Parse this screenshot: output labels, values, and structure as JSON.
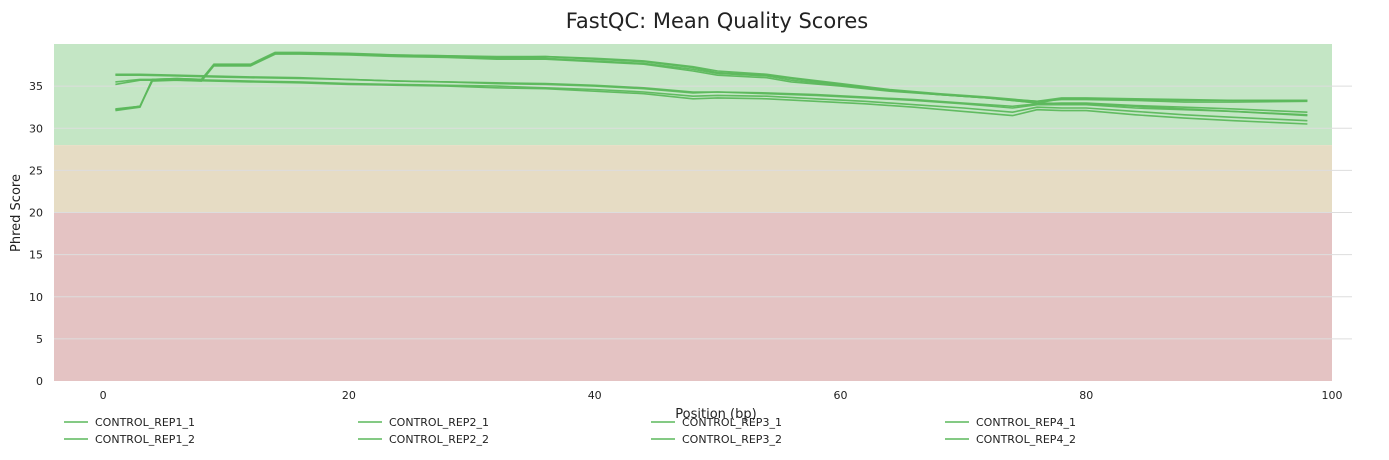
{
  "chart_data": {
    "type": "line",
    "title": "FastQC: Mean Quality Scores",
    "xlabel": "Position (bp)",
    "ylabel": "Phred Score",
    "xlim": [
      -4,
      100
    ],
    "ylim": [
      0,
      40
    ],
    "xticks": [
      0,
      20,
      40,
      60,
      80,
      100
    ],
    "yticks": [
      0,
      5,
      10,
      15,
      20,
      25,
      30,
      35
    ],
    "grid": true,
    "legend_position": "bottom",
    "quality_bands": [
      {
        "from": 28,
        "to": 40,
        "color": "#c4e6c5"
      },
      {
        "from": 20,
        "to": 28,
        "color": "#e6dcc4"
      },
      {
        "from": 0,
        "to": 20,
        "color": "#e4c3c3"
      }
    ],
    "line_color": "#5cb85c",
    "series": [
      {
        "name": "CONTROL_REP1_1",
        "x": [
          1,
          3,
          4,
          6,
          8,
          9,
          12,
          14,
          16,
          20,
          24,
          28,
          32,
          36,
          40,
          44,
          48,
          50,
          54,
          56,
          60,
          64,
          68,
          72,
          76,
          80,
          84,
          88,
          92,
          98
        ],
        "y": [
          32.2,
          32.6,
          35.6,
          35.7,
          35.6,
          37.4,
          37.4,
          38.8,
          38.8,
          38.7,
          38.5,
          38.4,
          38.2,
          38.2,
          37.9,
          37.6,
          36.8,
          36.3,
          36.0,
          35.5,
          35.0,
          34.4,
          34.0,
          33.6,
          33.0,
          32.9,
          32.6,
          32.3,
          32.0,
          31.5
        ]
      },
      {
        "name": "CONTROL_REP1_2",
        "x": [
          1,
          3,
          6,
          9,
          12,
          16,
          20,
          24,
          28,
          32,
          36,
          40,
          44,
          48,
          50,
          54,
          58,
          62,
          66,
          70,
          74,
          76,
          78,
          80,
          84,
          88,
          92,
          98
        ],
        "y": [
          36.4,
          36.4,
          36.3,
          36.2,
          36.1,
          36.0,
          35.8,
          35.6,
          35.5,
          35.4,
          35.3,
          35.1,
          34.8,
          34.3,
          34.3,
          34.2,
          34.0,
          33.7,
          33.4,
          33.0,
          32.6,
          32.9,
          33.0,
          33.0,
          32.7,
          32.5,
          32.3,
          31.9
        ]
      },
      {
        "name": "CONTROL_REP2_1",
        "x": [
          1,
          3,
          4,
          6,
          8,
          9,
          12,
          14,
          16,
          20,
          24,
          28,
          32,
          36,
          40,
          44,
          48,
          50,
          54,
          56,
          60,
          64,
          68,
          72,
          76,
          78,
          80,
          84,
          88,
          92,
          98
        ],
        "y": [
          32.1,
          32.5,
          35.8,
          35.9,
          35.8,
          37.5,
          37.5,
          38.9,
          38.9,
          38.8,
          38.7,
          38.6,
          38.4,
          38.5,
          38.2,
          37.9,
          37.2,
          36.6,
          36.3,
          35.9,
          35.2,
          34.5,
          34.0,
          33.6,
          33.0,
          33.5,
          33.5,
          33.4,
          33.3,
          33.3,
          33.3
        ]
      },
      {
        "name": "CONTROL_REP2_2",
        "x": [
          1,
          3,
          6,
          9,
          12,
          16,
          20,
          24,
          28,
          32,
          36,
          40,
          44,
          48,
          50,
          54,
          58,
          62,
          66,
          70,
          74,
          76,
          78,
          80,
          84,
          88,
          92,
          98
        ],
        "y": [
          35.2,
          35.7,
          35.7,
          35.6,
          35.5,
          35.4,
          35.2,
          35.1,
          35.0,
          34.8,
          34.7,
          34.4,
          34.1,
          33.5,
          33.6,
          33.5,
          33.2,
          32.9,
          32.5,
          32.0,
          31.5,
          32.2,
          32.1,
          32.1,
          31.6,
          31.2,
          30.9,
          30.5
        ]
      },
      {
        "name": "CONTROL_REP3_1",
        "x": [
          1,
          3,
          4,
          6,
          8,
          9,
          12,
          14,
          16,
          20,
          24,
          28,
          32,
          36,
          40,
          44,
          48,
          50,
          54,
          56,
          60,
          64,
          68,
          72,
          76,
          78,
          80,
          84,
          88,
          92,
          98
        ],
        "y": [
          32.2,
          32.6,
          35.7,
          35.8,
          35.7,
          37.5,
          37.5,
          38.9,
          38.9,
          38.8,
          38.6,
          38.5,
          38.3,
          38.3,
          38.0,
          37.7,
          37.0,
          36.5,
          36.2,
          35.7,
          35.1,
          34.5,
          34.0,
          33.6,
          33.2,
          33.4,
          33.4,
          33.3,
          33.1,
          33.1,
          33.2
        ]
      },
      {
        "name": "CONTROL_REP3_2",
        "x": [
          1,
          3,
          6,
          9,
          12,
          16,
          20,
          24,
          28,
          32,
          36,
          40,
          44,
          48,
          50,
          54,
          58,
          62,
          66,
          70,
          74,
          76,
          78,
          80,
          84,
          88,
          92,
          98
        ],
        "y": [
          35.5,
          35.8,
          35.8,
          35.7,
          35.6,
          35.5,
          35.3,
          35.2,
          35.1,
          35.0,
          34.8,
          34.6,
          34.3,
          33.8,
          33.9,
          33.8,
          33.5,
          33.2,
          32.8,
          32.4,
          31.9,
          32.5,
          32.4,
          32.4,
          32.0,
          31.6,
          31.3,
          30.9
        ]
      },
      {
        "name": "CONTROL_REP4_1",
        "x": [
          1,
          3,
          4,
          6,
          8,
          9,
          12,
          14,
          16,
          20,
          24,
          28,
          32,
          36,
          40,
          44,
          48,
          50,
          54,
          56,
          60,
          64,
          68,
          72,
          76,
          78,
          80,
          84,
          88,
          92,
          98
        ],
        "y": [
          32.3,
          32.6,
          35.8,
          35.9,
          35.8,
          37.6,
          37.6,
          39.0,
          39.0,
          38.9,
          38.7,
          38.6,
          38.5,
          38.5,
          38.3,
          38.0,
          37.3,
          36.8,
          36.4,
          36.0,
          35.3,
          34.6,
          34.1,
          33.7,
          33.2,
          33.6,
          33.6,
          33.5,
          33.4,
          33.3,
          33.3
        ]
      },
      {
        "name": "CONTROL_REP4_2",
        "x": [
          1,
          3,
          6,
          9,
          12,
          16,
          20,
          24,
          28,
          32,
          36,
          40,
          44,
          48,
          50,
          54,
          58,
          62,
          66,
          70,
          74,
          76,
          78,
          80,
          84,
          88,
          92,
          98
        ],
        "y": [
          36.3,
          36.3,
          36.2,
          36.1,
          36.0,
          35.9,
          35.8,
          35.6,
          35.5,
          35.3,
          35.2,
          35.0,
          34.7,
          34.2,
          34.3,
          34.1,
          33.9,
          33.6,
          33.3,
          32.9,
          32.4,
          32.8,
          32.8,
          32.8,
          32.4,
          32.2,
          32.0,
          31.6
        ]
      }
    ],
    "legend_order": [
      "CONTROL_REP1_1",
      "CONTROL_REP1_2",
      "CONTROL_REP2_1",
      "CONTROL_REP2_2",
      "CONTROL_REP3_1",
      "CONTROL_REP3_2",
      "CONTROL_REP4_1",
      "CONTROL_REP4_2"
    ]
  }
}
